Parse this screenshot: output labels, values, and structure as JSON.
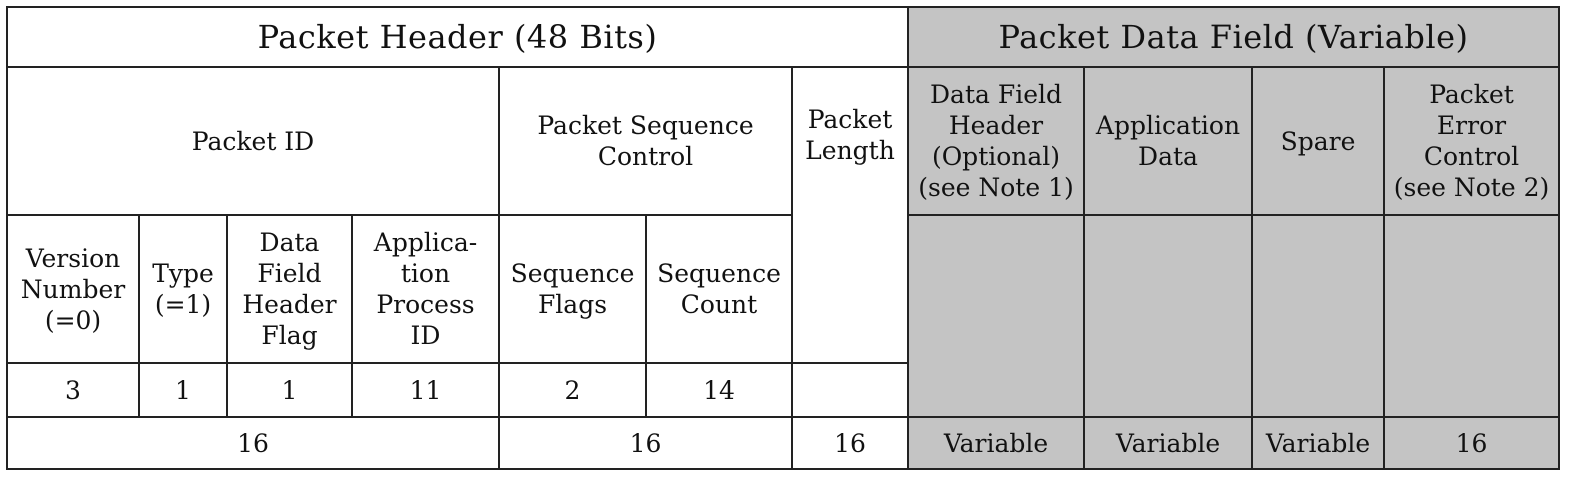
{
  "header": {
    "packet_header": "Packet  Header  (48  Bits)",
    "packet_data_field": "Packet  Data  Field  (Variable)"
  },
  "row2": {
    "packet_id": "Packet  ID",
    "packet_sequence_control": "Packet  Sequence\nControl",
    "packet_length": "Packet\nLength",
    "data_field_header": "Data  Field\nHeader\n(Optional)\n(see Note 1)",
    "application_data": "Application\nData",
    "spare": "Spare",
    "packet_error_control": "Packet\nError\nControl\n(see Note 2)"
  },
  "row3": {
    "version_number": "Version\nNumber\n(=0)",
    "type": "Type\n(=1)",
    "data_field_header_flag": "Data\nField\nHeader\nFlag",
    "application_process_id": "Applica-\ntion\nProcess\nID",
    "sequence_flags": "Sequence\nFlags",
    "sequence_count": "Sequence\nCount"
  },
  "bits": {
    "version_number": "3",
    "type": "1",
    "data_field_header_flag": "1",
    "application_process_id": "11",
    "sequence_flags": "2",
    "sequence_count": "14"
  },
  "totals": {
    "packet_id": "16",
    "packet_sequence_control": "16",
    "packet_length": "16",
    "data_field_header": "Variable",
    "application_data": "Variable",
    "spare": "Variable",
    "packet_error_control": "16"
  },
  "colors": {
    "data_field_background": "#c4c4c4",
    "border": "#222222"
  }
}
